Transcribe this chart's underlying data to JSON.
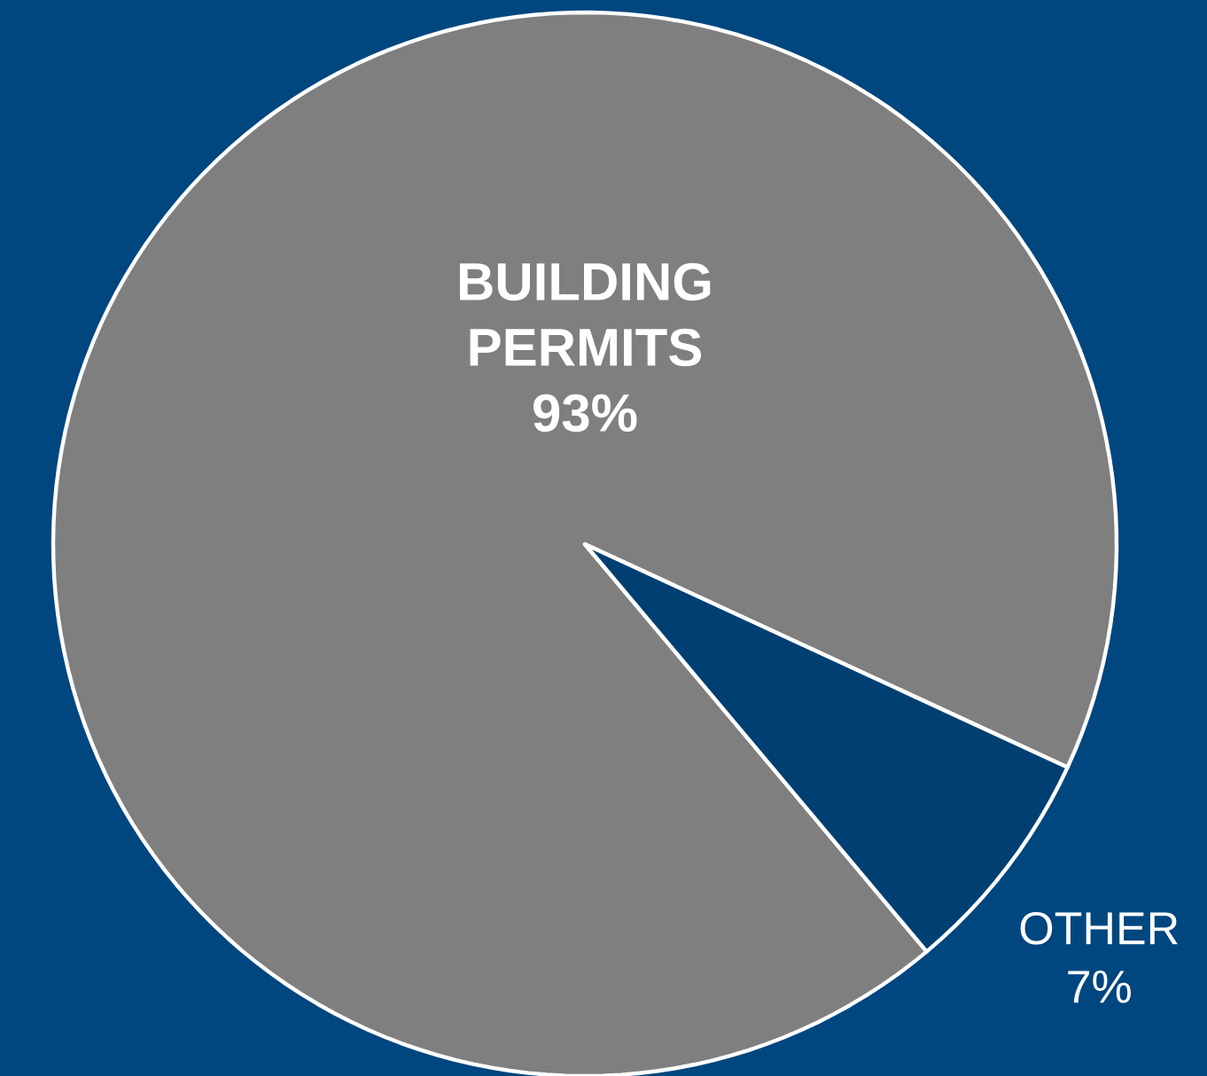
{
  "chart_data": {
    "type": "pie",
    "categories": [
      "BUILDING PERMITS",
      "OTHER"
    ],
    "values": [
      93,
      7
    ],
    "colors": [
      "#7f7f7f",
      "#003f72"
    ],
    "value_labels": [
      "93%",
      "7%"
    ],
    "data_labels": true
  }
}
